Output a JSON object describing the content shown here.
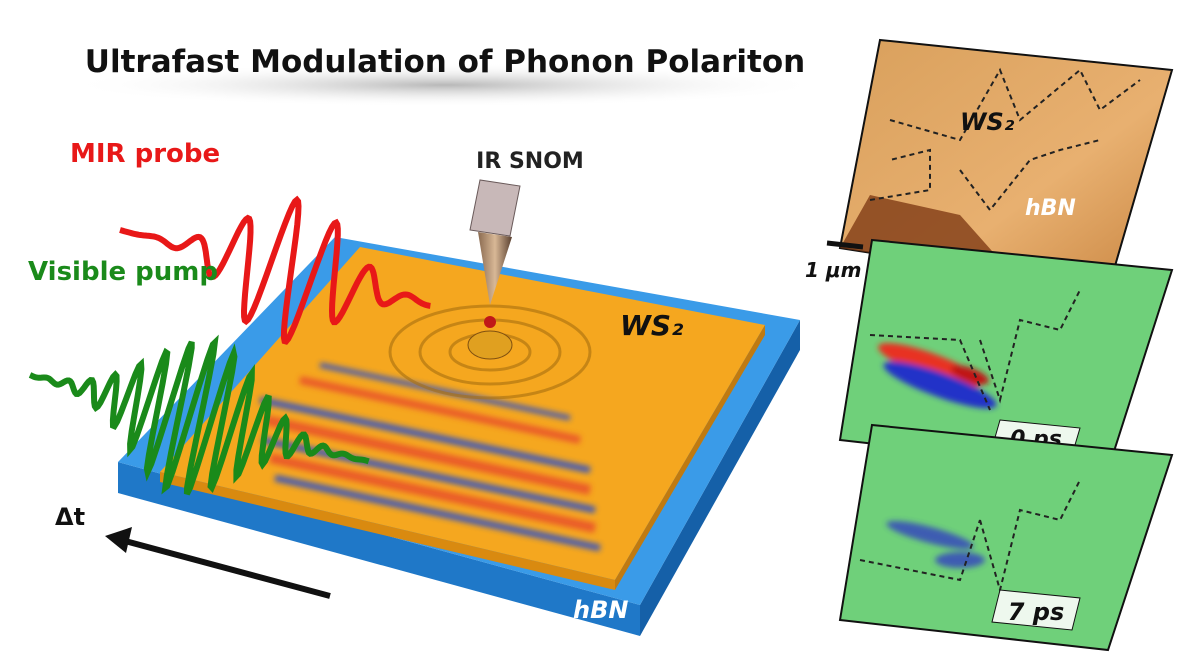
{
  "title": "Ultrafast Modulation of Phonon Polariton",
  "labels": {
    "ir_snom": "IR SNOM",
    "mir_probe": "MIR probe",
    "visible_pump": "Visible pump",
    "delta_t": "Δt",
    "sample_layer": "WS₂",
    "substrate": "hBN"
  },
  "panels": [
    {
      "layer": "WS₂",
      "substrate": "hBN"
    },
    {
      "time": "0 ps"
    },
    {
      "time": "7 ps"
    }
  ],
  "scale_bar": "1 μm"
}
